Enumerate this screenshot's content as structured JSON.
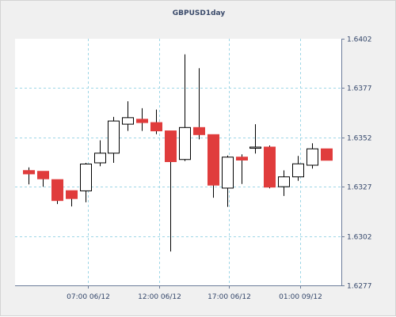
{
  "chart_data": {
    "type": "candlestick",
    "title": "GBPUSD1day",
    "x_tick_labels": [
      "07:00 06/12",
      "12:00 06/12",
      "17:00 06/12",
      "01:00 09/12"
    ],
    "y_tick_labels": [
      "1.6402",
      "1.6377",
      "1.6352",
      "1.6327",
      "1.6302",
      "1.6277"
    ],
    "ylim": [
      1.6277,
      1.6402
    ],
    "grid": true,
    "colors": {
      "up": "#ffffff",
      "down": "#e03c3c",
      "border": "#000000",
      "grid": "#9ed6e6"
    },
    "candles": [
      {
        "o": 1.63352,
        "h": 1.63368,
        "l": 1.63282,
        "c": 1.63335
      },
      {
        "o": 1.63348,
        "h": 1.63348,
        "l": 1.6327,
        "c": 1.6331
      },
      {
        "o": 1.63306,
        "h": 1.63306,
        "l": 1.63182,
        "c": 1.632
      },
      {
        "o": 1.6325,
        "h": 1.6325,
        "l": 1.6317,
        "c": 1.6321
      },
      {
        "o": 1.63249,
        "h": 1.63391,
        "l": 1.63191,
        "c": 1.63385
      },
      {
        "o": 1.63391,
        "h": 1.63505,
        "l": 1.63374,
        "c": 1.6344
      },
      {
        "o": 1.6344,
        "h": 1.63624,
        "l": 1.63391,
        "c": 1.63603
      },
      {
        "o": 1.63587,
        "h": 1.63703,
        "l": 1.63553,
        "c": 1.6362
      },
      {
        "o": 1.63612,
        "h": 1.63668,
        "l": 1.63553,
        "c": 1.63595
      },
      {
        "o": 1.63595,
        "h": 1.63661,
        "l": 1.63536,
        "c": 1.63553
      },
      {
        "o": 1.63553,
        "h": 1.63553,
        "l": 1.62942,
        "c": 1.63397
      },
      {
        "o": 1.63408,
        "h": 1.63941,
        "l": 1.634,
        "c": 1.6357
      },
      {
        "o": 1.6357,
        "h": 1.63871,
        "l": 1.6351,
        "c": 1.63534
      },
      {
        "o": 1.63534,
        "h": 1.63534,
        "l": 1.63214,
        "c": 1.63278
      },
      {
        "o": 1.63263,
        "h": 1.63428,
        "l": 1.63168,
        "c": 1.6342
      },
      {
        "o": 1.6342,
        "h": 1.63434,
        "l": 1.63284,
        "c": 1.63405
      },
      {
        "o": 1.63471,
        "h": 1.63587,
        "l": 1.63438,
        "c": 1.63471
      },
      {
        "o": 1.63471,
        "h": 1.63479,
        "l": 1.63262,
        "c": 1.63268
      },
      {
        "o": 1.6327,
        "h": 1.63353,
        "l": 1.63223,
        "c": 1.6332
      },
      {
        "o": 1.6332,
        "h": 1.63426,
        "l": 1.633,
        "c": 1.63386
      },
      {
        "o": 1.63379,
        "h": 1.6349,
        "l": 1.63362,
        "c": 1.63462
      },
      {
        "o": 1.63462,
        "h": 1.63462,
        "l": 1.63404,
        "c": 1.63404
      }
    ]
  }
}
